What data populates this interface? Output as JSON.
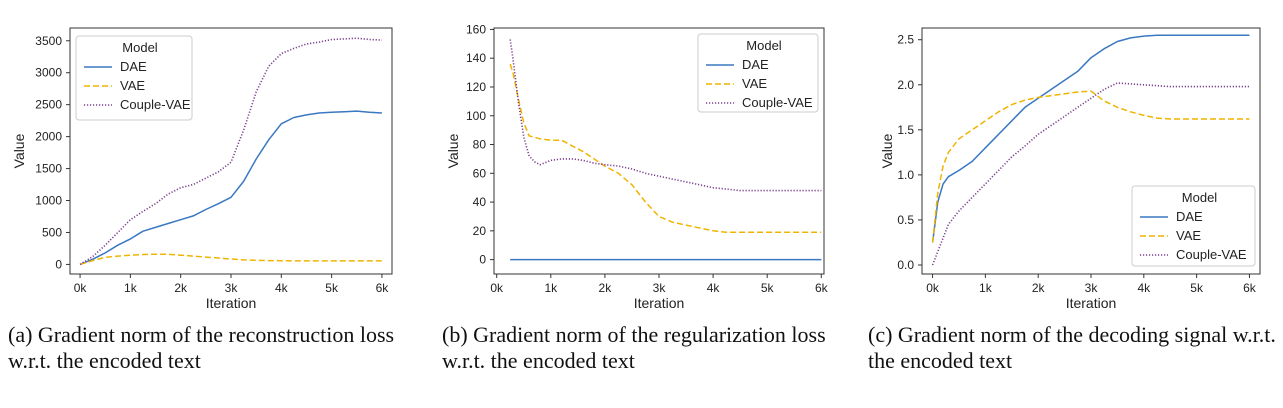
{
  "chart_data": [
    {
      "type": "line",
      "caption": "(a)  Gradient norm of the reconstruction loss w.r.t. the encoded text",
      "xlabel": "Iteration",
      "ylabel": "Value",
      "xlim": [
        -200,
        6200
      ],
      "ylim": [
        -150,
        3700
      ],
      "xticks": [
        0,
        1000,
        2000,
        3000,
        4000,
        5000,
        6000
      ],
      "xtick_labels": [
        "0k",
        "1k",
        "2k",
        "3k",
        "4k",
        "5k",
        "6k"
      ],
      "yticks": [
        0,
        500,
        1000,
        1500,
        2000,
        2500,
        3000,
        3500
      ],
      "ytick_labels": [
        "0",
        "500",
        "1000",
        "1500",
        "2000",
        "2500",
        "3000",
        "3500"
      ],
      "grid": false,
      "legend": {
        "title": "Model",
        "position": "upper-left"
      },
      "series": [
        {
          "name": "DAE",
          "color": "#3a78c2",
          "dash": "solid",
          "x": [
            0,
            250,
            500,
            750,
            1000,
            1250,
            1500,
            1750,
            2000,
            2250,
            2500,
            2750,
            3000,
            3250,
            3500,
            3750,
            4000,
            4250,
            4500,
            4750,
            5000,
            5250,
            5500,
            5750,
            6000
          ],
          "y": [
            0,
            80,
            180,
            300,
            400,
            520,
            580,
            640,
            700,
            760,
            860,
            950,
            1050,
            1300,
            1650,
            1950,
            2200,
            2300,
            2340,
            2370,
            2380,
            2390,
            2400,
            2380,
            2370
          ]
        },
        {
          "name": "VAE",
          "color": "#f0b400",
          "dash": "dashed",
          "x": [
            0,
            250,
            500,
            750,
            1000,
            1250,
            1500,
            1750,
            2000,
            2250,
            2500,
            2750,
            3000,
            3250,
            3500,
            3750,
            4000,
            4250,
            4500,
            4750,
            5000,
            5250,
            5500,
            5750,
            6000
          ],
          "y": [
            0,
            60,
            110,
            130,
            145,
            155,
            160,
            158,
            145,
            130,
            115,
            100,
            85,
            70,
            65,
            60,
            58,
            55,
            55,
            55,
            55,
            55,
            55,
            55,
            55
          ]
        },
        {
          "name": "Couple-VAE",
          "color": "#7b3f8f",
          "dash": "dotted",
          "x": [
            0,
            250,
            500,
            750,
            1000,
            1250,
            1500,
            1750,
            2000,
            2250,
            2500,
            2750,
            3000,
            3250,
            3500,
            3750,
            4000,
            4250,
            4500,
            4750,
            5000,
            5250,
            5500,
            5750,
            6000
          ],
          "y": [
            0,
            120,
            300,
            500,
            700,
            830,
            950,
            1100,
            1200,
            1250,
            1350,
            1450,
            1600,
            2100,
            2700,
            3100,
            3300,
            3380,
            3450,
            3480,
            3520,
            3530,
            3540,
            3520,
            3510
          ]
        }
      ]
    },
    {
      "type": "line",
      "caption": "(b)  Gradient norm of the regularization loss w.r.t. the encoded text",
      "xlabel": "Iteration",
      "ylabel": "Value",
      "xlim": [
        -50,
        6050
      ],
      "ylim": [
        -10,
        161
      ],
      "xticks": [
        0,
        1000,
        2000,
        3000,
        4000,
        5000,
        6000
      ],
      "xtick_labels": [
        "0k",
        "1k",
        "2k",
        "3k",
        "4k",
        "5k",
        "6k"
      ],
      "yticks": [
        0,
        20,
        40,
        60,
        80,
        100,
        120,
        140,
        160
      ],
      "ytick_labels": [
        "0",
        "20",
        "40",
        "60",
        "80",
        "100",
        "120",
        "140",
        "160"
      ],
      "grid": false,
      "legend": {
        "title": "Model",
        "position": "upper-right"
      },
      "series": [
        {
          "name": "DAE",
          "color": "#3a78c2",
          "dash": "solid",
          "x": [
            250,
            6000
          ],
          "y": [
            0,
            0
          ]
        },
        {
          "name": "VAE",
          "color": "#f0b400",
          "dash": "dashed",
          "x": [
            250,
            300,
            400,
            500,
            600,
            800,
            1000,
            1200,
            1400,
            1600,
            1800,
            2000,
            2250,
            2500,
            2750,
            3000,
            3250,
            3500,
            3750,
            4000,
            4250,
            4500,
            5000,
            5500,
            6000
          ],
          "y": [
            136,
            130,
            112,
            95,
            86,
            84,
            83,
            83,
            79,
            75,
            70,
            65,
            60,
            52,
            40,
            30,
            26,
            24,
            22,
            20,
            19,
            19,
            19,
            19,
            19
          ]
        },
        {
          "name": "Couple-VAE",
          "color": "#7b3f8f",
          "dash": "dotted",
          "x": [
            250,
            300,
            400,
            500,
            600,
            700,
            800,
            1000,
            1200,
            1400,
            1600,
            1800,
            2000,
            2250,
            2500,
            2750,
            3000,
            3250,
            3500,
            3750,
            4000,
            4250,
            4500,
            5000,
            5500,
            6000
          ],
          "y": [
            153,
            140,
            110,
            85,
            72,
            68,
            66,
            69,
            70,
            70,
            69,
            67,
            66,
            65,
            63,
            60,
            58,
            56,
            54,
            52,
            50,
            49,
            48,
            48,
            48,
            48
          ]
        }
      ]
    },
    {
      "type": "line",
      "caption": "(c)  Gradient norm of the decoding signal w.r.t. the encoded text",
      "xlabel": "Iteration",
      "ylabel": "Value",
      "xlim": [
        -200,
        6200
      ],
      "ylim": [
        -0.1,
        2.63
      ],
      "xticks": [
        0,
        1000,
        2000,
        3000,
        4000,
        5000,
        6000
      ],
      "xtick_labels": [
        "0k",
        "1k",
        "2k",
        "3k",
        "4k",
        "5k",
        "6k"
      ],
      "yticks": [
        0.0,
        0.5,
        1.0,
        1.5,
        2.0,
        2.5
      ],
      "ytick_labels": [
        "0.0",
        "0.5",
        "1.0",
        "1.5",
        "2.0",
        "2.5"
      ],
      "grid": false,
      "legend": {
        "title": "Model",
        "position": "lower-right"
      },
      "series": [
        {
          "name": "DAE",
          "color": "#3a78c2",
          "dash": "solid",
          "x": [
            0,
            100,
            200,
            300,
            500,
            750,
            1000,
            1250,
            1500,
            1750,
            2000,
            2250,
            2500,
            2750,
            3000,
            3250,
            3500,
            3750,
            4000,
            4250,
            4500,
            5000,
            5500,
            6000
          ],
          "y": [
            0.25,
            0.7,
            0.9,
            0.98,
            1.05,
            1.15,
            1.3,
            1.45,
            1.6,
            1.75,
            1.85,
            1.95,
            2.05,
            2.15,
            2.3,
            2.4,
            2.48,
            2.52,
            2.54,
            2.55,
            2.55,
            2.55,
            2.55,
            2.55
          ]
        },
        {
          "name": "VAE",
          "color": "#f0b400",
          "dash": "dashed",
          "x": [
            0,
            100,
            200,
            300,
            500,
            750,
            1000,
            1250,
            1500,
            1750,
            2000,
            2250,
            2500,
            2750,
            3000,
            3250,
            3500,
            3750,
            4000,
            4250,
            4500,
            5000,
            5500,
            6000
          ],
          "y": [
            0.25,
            0.8,
            1.1,
            1.25,
            1.4,
            1.5,
            1.6,
            1.7,
            1.78,
            1.83,
            1.86,
            1.88,
            1.9,
            1.92,
            1.93,
            1.82,
            1.75,
            1.7,
            1.66,
            1.63,
            1.62,
            1.62,
            1.62,
            1.62
          ]
        },
        {
          "name": "Couple-VAE",
          "color": "#7b3f8f",
          "dash": "dotted",
          "x": [
            0,
            100,
            200,
            300,
            500,
            750,
            1000,
            1250,
            1500,
            1750,
            2000,
            2250,
            2500,
            2750,
            3000,
            3250,
            3500,
            3750,
            4000,
            4250,
            4500,
            5000,
            5500,
            6000
          ],
          "y": [
            0.0,
            0.15,
            0.3,
            0.45,
            0.6,
            0.75,
            0.9,
            1.05,
            1.2,
            1.32,
            1.45,
            1.55,
            1.65,
            1.75,
            1.85,
            1.95,
            2.02,
            2.01,
            2.0,
            1.99,
            1.98,
            1.98,
            1.98,
            1.98
          ]
        }
      ]
    }
  ]
}
